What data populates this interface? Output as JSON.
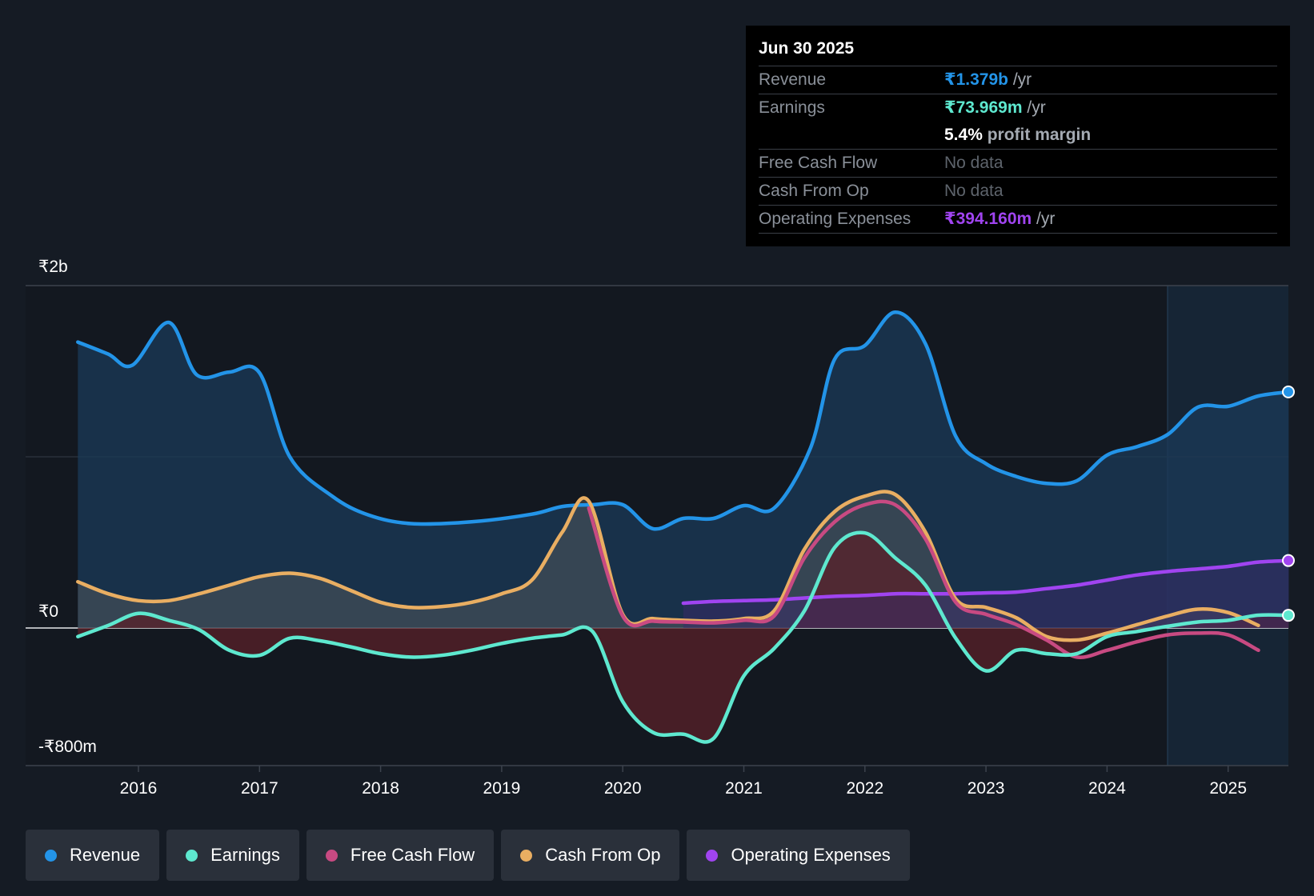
{
  "tooltip": {
    "date": "Jun 30 2025",
    "revenue_label": "Revenue",
    "revenue_value": "₹1.379b",
    "earnings_label": "Earnings",
    "earnings_value": "₹73.969m",
    "margin_value": "5.4%",
    "margin_text": "profit margin",
    "fcf_label": "Free Cash Flow",
    "fcf_value": "No data",
    "cfo_label": "Cash From Op",
    "cfo_value": "No data",
    "opex_label": "Operating Expenses",
    "opex_value": "₹394.160m",
    "unit": "/yr"
  },
  "legend": [
    {
      "label": "Revenue",
      "color": "#2394e8"
    },
    {
      "label": "Earnings",
      "color": "#5ee8cf"
    },
    {
      "label": "Free Cash Flow",
      "color": "#c84a82"
    },
    {
      "label": "Cash From Op",
      "color": "#e9ae62"
    },
    {
      "label": "Operating Expenses",
      "color": "#a044f0"
    }
  ],
  "chart_data": {
    "type": "line",
    "title": "",
    "x_range": [
      2015.3,
      2025.5
    ],
    "ylim": [
      -800,
      2000
    ],
    "y_tick_labels": [
      {
        "value": 2000,
        "label": "₹2b"
      },
      {
        "value": 0,
        "label": "₹0"
      },
      {
        "value": -800,
        "label": "-₹800m"
      }
    ],
    "x_tick_labels": [
      {
        "value": 2016,
        "label": "2016"
      },
      {
        "value": 2017,
        "label": "2017"
      },
      {
        "value": 2018,
        "label": "2018"
      },
      {
        "value": 2019,
        "label": "2019"
      },
      {
        "value": 2020,
        "label": "2020"
      },
      {
        "value": 2021,
        "label": "2021"
      },
      {
        "value": 2022,
        "label": "2022"
      },
      {
        "value": 2023,
        "label": "2023"
      },
      {
        "value": 2024,
        "label": "2024"
      },
      {
        "value": 2025,
        "label": "2025"
      }
    ],
    "forecast_start": 2024.5,
    "series": [
      {
        "name": "Revenue",
        "color": "#2394e8",
        "fill": "#1b3a58",
        "fill_opacity": 0.75,
        "points": [
          [
            2015.5,
            1670
          ],
          [
            2015.75,
            1600
          ],
          [
            2015.95,
            1535
          ],
          [
            2016.25,
            1785
          ],
          [
            2016.48,
            1480
          ],
          [
            2016.75,
            1495
          ],
          [
            2017.0,
            1490
          ],
          [
            2017.25,
            1000
          ],
          [
            2017.6,
            770
          ],
          [
            2017.9,
            660
          ],
          [
            2018.25,
            610
          ],
          [
            2018.75,
            620
          ],
          [
            2019.25,
            665
          ],
          [
            2019.5,
            710
          ],
          [
            2019.75,
            720
          ],
          [
            2020.0,
            720
          ],
          [
            2020.25,
            580
          ],
          [
            2020.5,
            640
          ],
          [
            2020.75,
            640
          ],
          [
            2021.0,
            715
          ],
          [
            2021.25,
            700
          ],
          [
            2021.55,
            1050
          ],
          [
            2021.75,
            1570
          ],
          [
            2022.0,
            1650
          ],
          [
            2022.25,
            1845
          ],
          [
            2022.5,
            1660
          ],
          [
            2022.75,
            1120
          ],
          [
            2023.0,
            960
          ],
          [
            2023.25,
            885
          ],
          [
            2023.5,
            845
          ],
          [
            2023.75,
            860
          ],
          [
            2024.0,
            1010
          ],
          [
            2024.25,
            1060
          ],
          [
            2024.5,
            1130
          ],
          [
            2024.75,
            1290
          ],
          [
            2025.0,
            1295
          ],
          [
            2025.25,
            1355
          ],
          [
            2025.5,
            1379
          ]
        ],
        "end_marker": true
      },
      {
        "name": "Earnings",
        "color": "#5ee8cf",
        "fill": null,
        "points": [
          [
            2015.5,
            -50
          ],
          [
            2015.75,
            15
          ],
          [
            2016.0,
            85
          ],
          [
            2016.25,
            45
          ],
          [
            2016.5,
            -10
          ],
          [
            2016.75,
            -130
          ],
          [
            2017.0,
            -160
          ],
          [
            2017.25,
            -60
          ],
          [
            2017.5,
            -75
          ],
          [
            2017.75,
            -110
          ],
          [
            2018.0,
            -150
          ],
          [
            2018.25,
            -170
          ],
          [
            2018.5,
            -160
          ],
          [
            2018.75,
            -130
          ],
          [
            2019.0,
            -90
          ],
          [
            2019.25,
            -60
          ],
          [
            2019.5,
            -40
          ],
          [
            2019.75,
            -20
          ],
          [
            2020.0,
            -430
          ],
          [
            2020.25,
            -610
          ],
          [
            2020.5,
            -620
          ],
          [
            2020.75,
            -645
          ],
          [
            2021.0,
            -280
          ],
          [
            2021.25,
            -120
          ],
          [
            2021.5,
            100
          ],
          [
            2021.75,
            470
          ],
          [
            2022.0,
            555
          ],
          [
            2022.25,
            410
          ],
          [
            2022.5,
            250
          ],
          [
            2022.75,
            -60
          ],
          [
            2023.0,
            -250
          ],
          [
            2023.25,
            -130
          ],
          [
            2023.5,
            -150
          ],
          [
            2023.75,
            -150
          ],
          [
            2024.0,
            -50
          ],
          [
            2024.25,
            -20
          ],
          [
            2024.5,
            10
          ],
          [
            2024.75,
            35
          ],
          [
            2025.0,
            45
          ],
          [
            2025.25,
            75
          ],
          [
            2025.5,
            74
          ]
        ],
        "end_marker": true
      },
      {
        "name": "Free Cash Flow",
        "color": "#c84a82",
        "fill": null,
        "points": [
          [
            2019.72,
            700
          ],
          [
            2020.0,
            70
          ],
          [
            2020.25,
            40
          ],
          [
            2020.5,
            35
          ],
          [
            2020.75,
            30
          ],
          [
            2021.0,
            45
          ],
          [
            2021.25,
            70
          ],
          [
            2021.5,
            410
          ],
          [
            2021.75,
            620
          ],
          [
            2022.0,
            720
          ],
          [
            2022.25,
            720
          ],
          [
            2022.5,
            520
          ],
          [
            2022.75,
            150
          ],
          [
            2023.0,
            80
          ],
          [
            2023.25,
            20
          ],
          [
            2023.5,
            -70
          ],
          [
            2023.75,
            -170
          ],
          [
            2024.0,
            -130
          ],
          [
            2024.25,
            -80
          ],
          [
            2024.5,
            -40
          ],
          [
            2024.75,
            -30
          ],
          [
            2025.0,
            -40
          ],
          [
            2025.25,
            -130
          ]
        ],
        "end_marker": false
      },
      {
        "name": "Cash From Op",
        "color": "#e9ae62",
        "fill": null,
        "points": [
          [
            2015.5,
            270
          ],
          [
            2015.75,
            200
          ],
          [
            2016.0,
            160
          ],
          [
            2016.25,
            160
          ],
          [
            2016.5,
            200
          ],
          [
            2016.75,
            250
          ],
          [
            2017.0,
            300
          ],
          [
            2017.25,
            320
          ],
          [
            2017.5,
            290
          ],
          [
            2017.75,
            220
          ],
          [
            2018.0,
            150
          ],
          [
            2018.25,
            120
          ],
          [
            2018.5,
            125
          ],
          [
            2018.75,
            150
          ],
          [
            2019.0,
            200
          ],
          [
            2019.25,
            280
          ],
          [
            2019.5,
            560
          ],
          [
            2019.72,
            740
          ],
          [
            2020.0,
            80
          ],
          [
            2020.25,
            55
          ],
          [
            2020.5,
            45
          ],
          [
            2020.75,
            40
          ],
          [
            2021.0,
            55
          ],
          [
            2021.25,
            100
          ],
          [
            2021.5,
            460
          ],
          [
            2021.75,
            680
          ],
          [
            2022.0,
            770
          ],
          [
            2022.25,
            780
          ],
          [
            2022.5,
            560
          ],
          [
            2022.75,
            170
          ],
          [
            2023.0,
            120
          ],
          [
            2023.25,
            60
          ],
          [
            2023.5,
            -50
          ],
          [
            2023.75,
            -70
          ],
          [
            2024.0,
            -30
          ],
          [
            2024.25,
            20
          ],
          [
            2024.5,
            70
          ],
          [
            2024.75,
            110
          ],
          [
            2025.0,
            90
          ],
          [
            2025.25,
            15
          ]
        ],
        "end_marker": false
      },
      {
        "name": "Operating Expenses",
        "color": "#a044f0",
        "fill": null,
        "points": [
          [
            2020.5,
            145
          ],
          [
            2020.75,
            155
          ],
          [
            2021.0,
            160
          ],
          [
            2021.25,
            165
          ],
          [
            2021.5,
            175
          ],
          [
            2021.75,
            185
          ],
          [
            2022.0,
            190
          ],
          [
            2022.25,
            200
          ],
          [
            2022.5,
            200
          ],
          [
            2022.75,
            200
          ],
          [
            2023.0,
            205
          ],
          [
            2023.25,
            210
          ],
          [
            2023.5,
            230
          ],
          [
            2023.75,
            250
          ],
          [
            2024.0,
            280
          ],
          [
            2024.25,
            310
          ],
          [
            2024.5,
            330
          ],
          [
            2024.75,
            345
          ],
          [
            2025.0,
            360
          ],
          [
            2025.25,
            385
          ],
          [
            2025.5,
            394
          ]
        ],
        "end_marker": true
      }
    ],
    "profit_fill": {
      "positive_color": "#5a6060",
      "negative_color": "#5a2028"
    }
  }
}
